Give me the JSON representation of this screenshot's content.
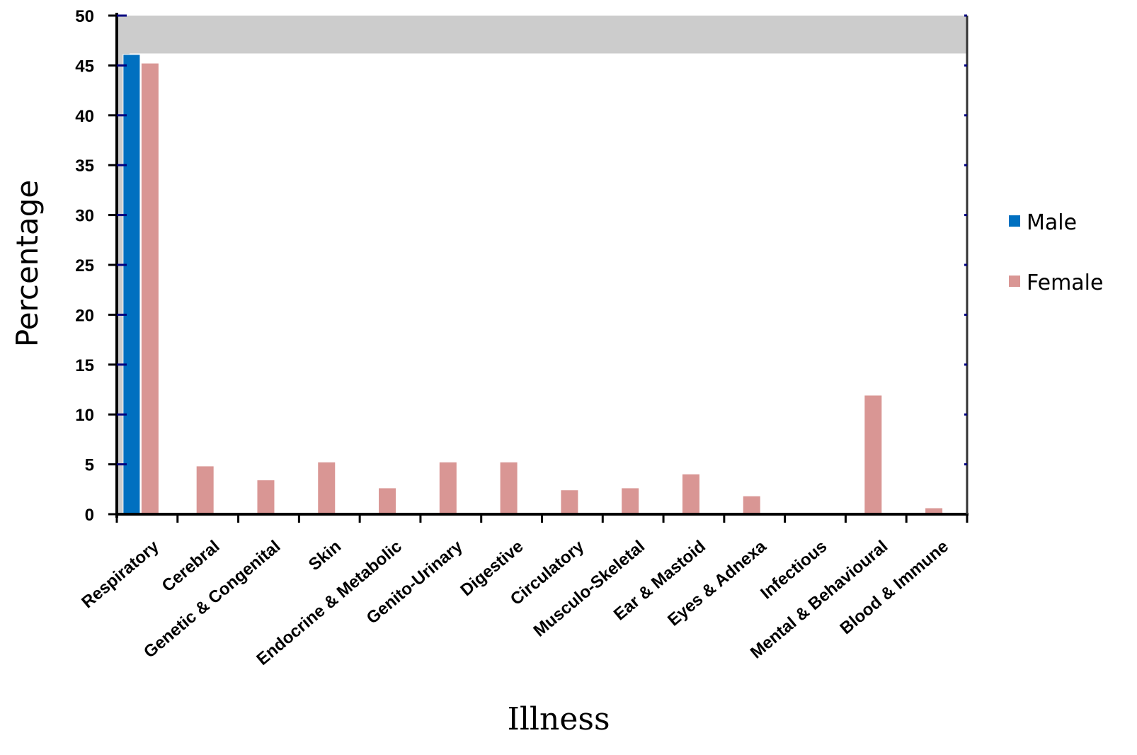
{
  "chart_data": {
    "type": "bar",
    "xlabel": "Illness",
    "ylabel": "Percentage",
    "ylim": [
      0,
      50
    ],
    "yticks": [
      0,
      5,
      10,
      15,
      20,
      25,
      30,
      35,
      40,
      45,
      50
    ],
    "grid": false,
    "legend_position": "right",
    "categories": [
      "Respiratory",
      "Cerebral",
      "Genetic & Congenital",
      "Skin",
      "Endocrine & Metabolic",
      "Genito-Urinary",
      "Digestive",
      "Circulatory",
      "Musculo-Skeletal",
      "Ear & Mastoid",
      "Eyes & Adnexa",
      "Infectious",
      "Mental & Behavioural",
      "Blood & Immune"
    ],
    "series": [
      {
        "name": "Male",
        "color": "#0070c0",
        "values": [
          46.1,
          0,
          0,
          0,
          0,
          0,
          0,
          0,
          0,
          0,
          0,
          0,
          0,
          0
        ]
      },
      {
        "name": "Female",
        "color": "#d99694",
        "values": [
          45.2,
          4.8,
          3.4,
          5.2,
          2.6,
          5.2,
          5.2,
          2.4,
          2.6,
          4.0,
          1.8,
          0,
          11.9,
          0.6
        ]
      }
    ],
    "colors": {
      "background_band": "#cccccc",
      "tick_marks": "#000080",
      "axis": "#000000"
    }
  }
}
